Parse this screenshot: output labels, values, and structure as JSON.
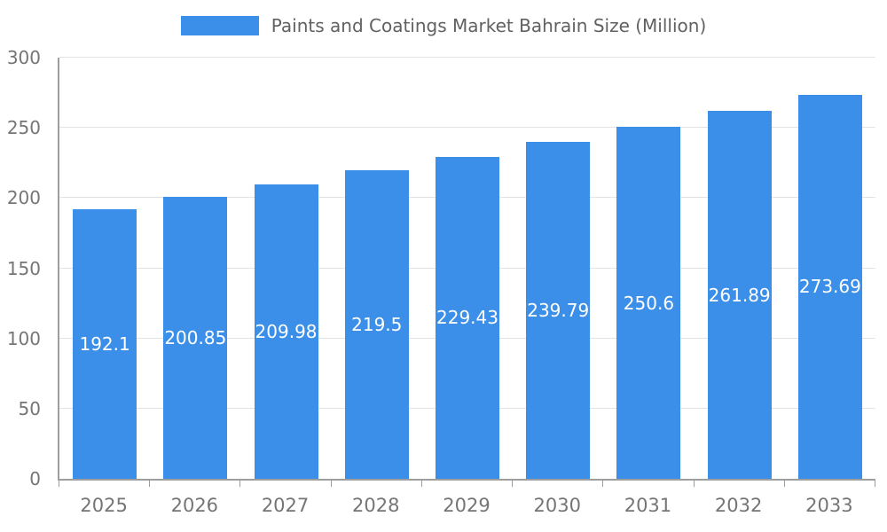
{
  "chart_data": {
    "type": "bar",
    "title": "Paints and Coatings Market Bahrain Size (Million)",
    "categories": [
      "2025",
      "2026",
      "2027",
      "2028",
      "2029",
      "2030",
      "2031",
      "2032",
      "2033"
    ],
    "values": [
      192.1,
      200.85,
      209.98,
      219.5,
      229.43,
      239.79,
      250.6,
      261.89,
      273.69
    ],
    "value_labels": [
      "192.1",
      "200.85",
      "209.98",
      "219.5",
      "229.43",
      "239.79",
      "250.6",
      "261.89",
      "273.69"
    ],
    "xlabel": "",
    "ylabel": "",
    "ylim": [
      0,
      300
    ],
    "yticks": [
      0,
      50,
      100,
      150,
      200,
      250,
      300
    ],
    "grid": true,
    "legend_position": "top",
    "colors": {
      "bar": "#3B8FE8",
      "value_label": "#ffffff",
      "axis_text": "#757575",
      "title_text": "#616161",
      "grid_line": "#e3e3e3",
      "axis_line": "#9e9e9e"
    }
  }
}
